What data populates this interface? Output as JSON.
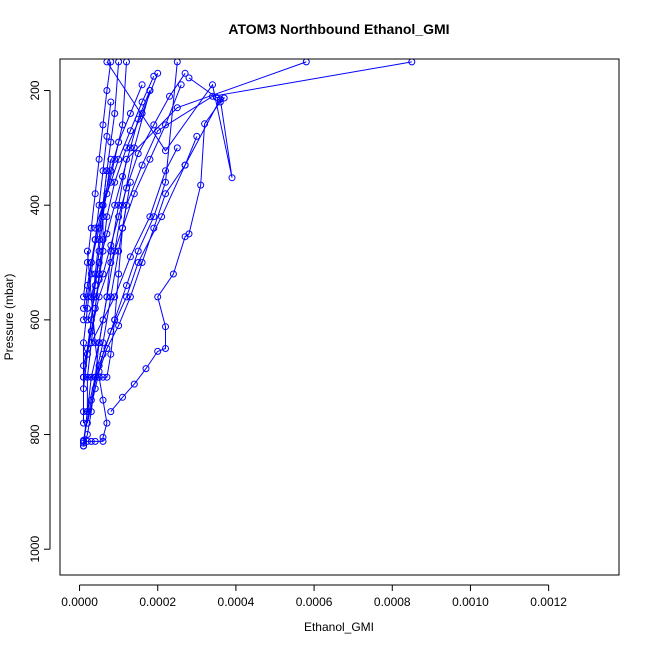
{
  "chart_data": {
    "type": "line",
    "title": "ATOM3 Northbound Ethanol_GMI",
    "xlabel": "Ethanol_GMI",
    "ylabel": "Pressure (mbar)",
    "xlim": [
      -5e-05,
      0.00138
    ],
    "ylim": [
      1045,
      145
    ],
    "y_reversed": true,
    "x_ticks": [
      0.0,
      0.0002,
      0.0004,
      0.0006,
      0.0008,
      0.001,
      0.0012
    ],
    "x_tick_labels": [
      "0.0000",
      "0.0002",
      "0.0004",
      "0.0006",
      "0.0008",
      "0.0010",
      "0.0012"
    ],
    "y_ticks": [
      200,
      400,
      600,
      800,
      1000
    ],
    "y_tick_labels": [
      "200",
      "400",
      "600",
      "800",
      "1000"
    ],
    "grid": false,
    "legend": "none",
    "marker": "open-circle",
    "color": "#0000ff",
    "series": [
      {
        "x": [
          1e-05,
          2e-05,
          3e-05,
          5e-05,
          7e-05,
          8e-05,
          0.0001,
          0.00012,
          0.00025,
          0.00058
        ],
        "y": [
          820,
          760,
          700,
          640,
          560,
          480,
          400,
          320,
          230,
          150
        ]
      },
      {
        "x": [
          1e-05,
          2e-05,
          4e-05,
          6e-05,
          8e-05,
          0.0001,
          0.00012,
          0.00016,
          0.0002,
          0.00034,
          0.00085
        ],
        "y": [
          815,
          760,
          700,
          640,
          560,
          480,
          400,
          330,
          270,
          210,
          150
        ]
      },
      {
        "x": [
          1e-05,
          3e-05,
          5e-05,
          8e-05,
          0.00012,
          0.00015,
          0.00021,
          0.00027,
          0.00036,
          0.00039,
          0.00034,
          0.00022,
          7e-05
        ],
        "y": [
          810,
          740,
          680,
          620,
          560,
          500,
          420,
          330,
          215,
          352,
          190,
          305,
          150
        ]
      },
      {
        "x": [
          1e-05,
          2e-05,
          3e-05,
          4e-05,
          6e-05,
          6e-05,
          7e-05,
          6e-05,
          5e-05,
          4e-05,
          3e-05,
          2e-05
        ],
        "y": [
          812,
          812,
          812,
          812,
          812,
          805,
          780,
          740,
          700,
          640,
          560,
          480
        ]
      },
      {
        "x": [
          8e-05,
          0.00011,
          0.00014,
          0.00017,
          0.0002,
          0.00022,
          0.00022,
          0.0002,
          0.00024,
          0.00027,
          0.00028,
          0.00031,
          0.00032,
          0.00036,
          0.00037,
          0.00035,
          0.00028
        ],
        "y": [
          760,
          735,
          712,
          685,
          655,
          650,
          612,
          560,
          520,
          455,
          450,
          365,
          258,
          220,
          213,
          212,
          178
        ]
      },
      {
        "x": [
          1e-05,
          1e-05,
          2e-05,
          3e-05,
          4e-05,
          5e-05,
          6e-05,
          7e-05,
          8e-05,
          9e-05,
          0.0001
        ],
        "y": [
          780,
          700,
          650,
          600,
          520,
          460,
          400,
          340,
          290,
          240,
          150
        ]
      },
      {
        "x": [
          1e-05,
          2e-05,
          3e-05,
          4e-05,
          5e-05,
          6e-05,
          7e-05,
          8e-05,
          9e-05,
          0.0001,
          0.00011,
          0.00013
        ],
        "y": [
          700,
          700,
          700,
          700,
          700,
          700,
          700,
          660,
          600,
          520,
          440,
          360
        ]
      },
      {
        "x": [
          1e-05,
          2e-05,
          2e-05,
          3e-05,
          4e-05,
          5e-05,
          6e-05,
          6e-05,
          7e-05
        ],
        "y": [
          760,
          760,
          700,
          640,
          580,
          520,
          460,
          400,
          340
        ]
      },
      {
        "x": [
          2e-05,
          4e-05,
          6e-05,
          9e-05,
          0.00012,
          0.00015,
          0.00019,
          0.00022,
          0.00025
        ],
        "y": [
          780,
          720,
          660,
          600,
          540,
          480,
          420,
          360,
          150
        ]
      },
      {
        "x": [
          5e-05,
          7e-05,
          0.0001,
          0.00013,
          0.00016,
          0.00019,
          0.00022,
          0.00027,
          0.0003
        ],
        "y": [
          690,
          650,
          610,
          560,
          500,
          440,
          380,
          330,
          280
        ]
      },
      {
        "x": [
          1e-05,
          2e-05,
          3e-05,
          5e-05,
          7e-05,
          9e-05,
          0.00011,
          0.00012
        ],
        "y": [
          600,
          560,
          500,
          440,
          380,
          320,
          260,
          150
        ]
      },
      {
        "x": [
          1e-05,
          2e-05,
          3e-05,
          4e-05,
          5e-05,
          6e-05,
          8e-05
        ],
        "y": [
          720,
          660,
          600,
          540,
          480,
          420,
          320
        ]
      },
      {
        "x": [
          3e-05,
          6e-05,
          9e-05,
          0.00013,
          0.00018,
          0.00022,
          0.00025
        ],
        "y": [
          640,
          600,
          560,
          490,
          420,
          340,
          300
        ]
      },
      {
        "x": [
          1e-05,
          2e-05,
          3e-05,
          4e-05,
          5e-05,
          7e-05,
          9e-05,
          0.00011,
          0.00014,
          0.00018
        ],
        "y": [
          820,
          800,
          760,
          700,
          640,
          560,
          480,
          400,
          300,
          200
        ]
      },
      {
        "x": [
          2e-05,
          3e-05,
          4e-05,
          5e-05,
          6e-05,
          7e-05,
          9e-05,
          0.00012,
          0.00016,
          0.0002
        ],
        "y": [
          660,
          620,
          580,
          530,
          480,
          420,
          360,
          300,
          240,
          170
        ]
      },
      {
        "x": [
          1e-05,
          2e-05,
          3e-05,
          4e-05,
          6e-05,
          8e-05,
          0.0001,
          0.00013,
          0.00016
        ],
        "y": [
          580,
          540,
          500,
          460,
          400,
          340,
          290,
          240,
          190
        ]
      },
      {
        "x": [
          1e-05,
          1e-05,
          2e-05,
          3e-05,
          4e-05,
          5e-05,
          6e-05,
          7e-05,
          8e-05
        ],
        "y": [
          700,
          640,
          580,
          520,
          460,
          400,
          340,
          280,
          220
        ]
      },
      {
        "x": [
          2e-05,
          4e-05,
          6e-05,
          8e-05,
          0.0001,
          0.00012,
          0.00015,
          0.00019,
          0.00023,
          0.00027
        ],
        "y": [
          600,
          560,
          520,
          470,
          420,
          370,
          310,
          260,
          210,
          170
        ]
      },
      {
        "x": [
          1e-05,
          2e-05,
          3e-05,
          4e-05,
          5e-05,
          6e-05,
          7e-05,
          8e-05
        ],
        "y": [
          560,
          500,
          440,
          380,
          320,
          260,
          200,
          150
        ]
      },
      {
        "x": [
          3e-05,
          5e-05,
          7e-05,
          9e-05,
          0.00011,
          0.00013,
          0.00015,
          0.00018
        ],
        "y": [
          560,
          500,
          450,
          400,
          350,
          300,
          250,
          200
        ]
      },
      {
        "x": [
          1e-05,
          3e-05,
          5e-05,
          8e-05,
          0.00011,
          0.00014,
          0.00018,
          0.00022,
          0.00026
        ],
        "y": [
          680,
          620,
          560,
          500,
          440,
          380,
          320,
          260,
          190
        ]
      },
      {
        "x": [
          4e-05,
          6e-05,
          8e-05,
          0.0001,
          0.00013,
          0.00016,
          0.00019
        ],
        "y": [
          440,
          400,
          360,
          320,
          270,
          220,
          175
        ]
      }
    ]
  }
}
